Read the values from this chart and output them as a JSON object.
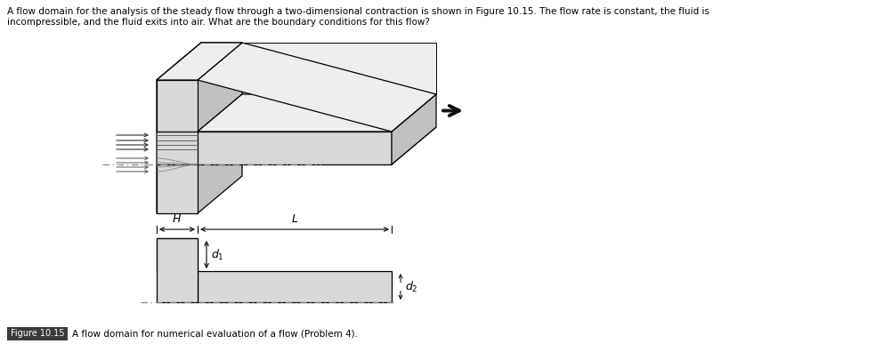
{
  "fig_width": 9.92,
  "fig_height": 3.96,
  "dpi": 100,
  "bg_color": "#ffffff",
  "header_text": "A flow domain for the analysis of the steady flow through a two-dimensional contraction is shown in Figure 10.15. The flow rate is constant, the fluid is\nincompressible, and the fluid exits into air. What are the boundary conditions for this flow?",
  "caption_text": "A flow domain for numerical evaluation of a flow (Problem 4).",
  "figure_label": "Figure 10.15",
  "light_gray": "#d8d8d8",
  "top_gray": "#eeeeee",
  "side_gray": "#c0c0c0",
  "line_color": "#000000",
  "dim_color": "#3a8a9e"
}
